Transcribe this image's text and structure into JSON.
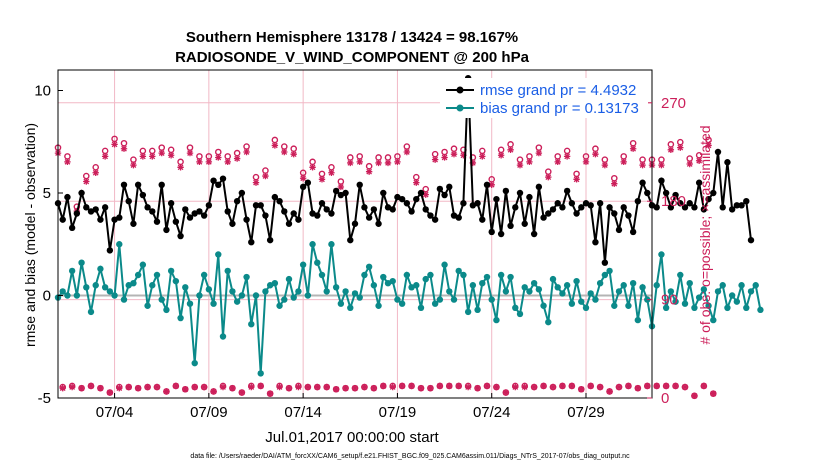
{
  "chart_data": {
    "type": "line",
    "title_line1": "Southern Hemisphere 13178 / 13424 = 98.167%",
    "title_line2": "RADIOSONDE_V_WIND_COMPONENT @ 200 hPa",
    "xlabel": "Jul.01,2017 00:00:00 start",
    "ylabel": "rmse and bias (model - observation)",
    "y2label": "# of obs: o=possible; ×=assimilated",
    "footer": "data file: /Users/raeder/DAI/ATM_forcXX/CAM6_setup/f.e21.FHIST_BGC.f09_025.CAM6assim.011/Diags_NTrS_2017-07/obs_diag_output.nc",
    "x_range": [
      1,
      32.5
    ],
    "ylim": [
      -5,
      11
    ],
    "y2lim": [
      0,
      300
    ],
    "yticks": [
      -5,
      0,
      5,
      10
    ],
    "y2ticks": [
      0,
      90,
      180,
      270
    ],
    "xticks": [
      {
        "x": 4,
        "label": "07/04"
      },
      {
        "x": 9,
        "label": "07/09"
      },
      {
        "x": 14,
        "label": "07/14"
      },
      {
        "x": 19,
        "label": "07/19"
      },
      {
        "x": 24,
        "label": "07/24"
      },
      {
        "x": 29,
        "label": "07/29"
      }
    ],
    "colors": {
      "rmse": "#000000",
      "bias": "#0b8a8a",
      "obs": "#cc1f5a",
      "zero": "#b4b4b4",
      "grid": "#f2b8c6"
    },
    "legend": {
      "location": "top-right",
      "entries": [
        "rmse grand pr = 4.4932",
        "bias grand pr = 0.13173"
      ]
    },
    "series": [
      {
        "name": "rmse",
        "values": [
          4.5,
          3.7,
          4.8,
          3.3,
          4.0,
          5.0,
          4.3,
          4.1,
          4.2,
          3.7,
          4.3,
          2.2,
          3.7,
          3.8,
          5.4,
          4.6,
          3.5,
          5.4,
          4.9,
          4.3,
          4.1,
          3.6,
          5.4,
          3.2,
          4.5,
          3.6,
          2.9,
          4.2,
          3.8,
          4.0,
          4.1,
          3.9,
          4.4,
          5.6,
          5.4,
          5.7,
          4.1,
          3.5,
          4.6,
          5.0,
          3.7,
          2.6,
          4.4,
          4.4,
          3.9,
          2.7,
          4.8,
          4.6,
          4.1,
          3.5,
          4.0,
          3.7,
          5.3,
          5.5,
          4.0,
          3.9,
          4.5,
          4.2,
          4.0,
          5.1,
          4.9,
          5.0,
          2.7,
          3.5,
          5.4,
          4.3,
          3.8,
          4.2,
          3.5,
          5.0,
          4.3,
          4.2,
          4.8,
          4.7,
          4.5,
          4.1,
          4.7,
          5.0,
          4.2,
          3.9,
          3.7,
          5.2,
          4.9,
          5.3,
          3.9,
          3.8,
          4.5,
          10.6,
          4.4,
          4.5,
          3.7,
          5.4,
          3.1,
          4.7,
          3.0,
          5.1,
          3.4,
          4.3,
          5.0,
          3.5,
          4.8,
          3.0,
          5.3,
          3.8,
          4.0,
          4.2,
          4.5,
          4.3,
          5.1,
          4.5,
          4.0,
          4.3,
          4.5,
          4.4,
          2.6,
          4.5,
          1.6,
          4.3,
          4.0,
          3.2,
          4.3,
          3.9,
          3.1,
          4.6,
          5.5,
          5.0,
          4.4,
          4.3,
          5.6,
          5.0,
          4.3,
          4.9,
          4.5,
          4.3,
          4.5,
          4.3,
          5.5,
          4.2,
          4.7,
          5.0,
          7.0,
          4.3,
          6.5,
          4.2,
          4.4,
          4.4,
          4.6,
          2.7
        ]
      },
      {
        "name": "bias",
        "values": [
          -0.1,
          0.2,
          0.0,
          1.2,
          0.0,
          1.6,
          0.4,
          -0.8,
          0.5,
          1.3,
          0.4,
          0.2,
          0.0,
          2.5,
          -0.2,
          0.5,
          0.6,
          1.0,
          1.5,
          -0.5,
          0.5,
          1.0,
          -0.2,
          -0.7,
          1.2,
          0.7,
          -1.1,
          0.4,
          -0.4,
          -3.3,
          0.0,
          1.0,
          0.3,
          -0.4,
          2.0,
          -2.0,
          1.2,
          0.2,
          -0.3,
          0.0,
          0.9,
          -1.4,
          0.0,
          -3.8,
          0.2,
          0.5,
          0.6,
          -0.5,
          -0.2,
          0.8,
          -0.1,
          0.2,
          1.5,
          0.0,
          2.5,
          1.6,
          1.0,
          0.2,
          2.5,
          0.4,
          -0.4,
          0.2,
          -0.6,
          0.1,
          -0.1,
          1.0,
          1.4,
          0.5,
          -0.5,
          0.9,
          0.6,
          0.7,
          -0.2,
          -0.4,
          1.0,
          0.4,
          0.5,
          -0.6,
          0.8,
          1.0,
          -0.4,
          -0.2,
          1.5,
          0.2,
          -0.2,
          1.2,
          1.0,
          -0.8,
          0.5,
          -0.7,
          0.6,
          0.9,
          -0.2,
          -1.2,
          1.0,
          0.2,
          0.9,
          -0.6,
          -0.9,
          0.4,
          0.2,
          0.6,
          0.3,
          -0.5,
          -1.3,
          0.8,
          0.4,
          0.1,
          0.5,
          -0.4,
          0.7,
          -0.3,
          -0.6,
          0.1,
          -0.2,
          0.6,
          1.0,
          1.2,
          -0.5,
          0.2,
          0.5,
          -0.5,
          0.6,
          -1.2,
          0.4,
          -0.2,
          -1.5,
          0.5,
          2.0,
          -0.6,
          0.2,
          -0.3,
          1.0,
          -0.4,
          0.6,
          -0.6,
          -0.1,
          0.3,
          -0.5,
          -1.2,
          0.2,
          0.5,
          -0.6,
          0.0,
          -0.3,
          0.5,
          -0.6,
          0.2,
          0.5,
          -0.7
        ]
      },
      {
        "name": "obs_possible",
        "values": [
          229,
          10,
          221,
          11,
          175,
          9,
          203,
          11,
          211,
          9,
          226,
          5,
          237,
          10,
          233,
          10,
          218,
          9,
          226,
          10,
          226,
          10,
          229,
          6,
          227,
          11,
          216,
          8,
          229,
          10,
          221,
          10,
          221,
          6,
          225,
          11,
          221,
          9,
          224,
          5,
          230,
          11,
          202,
          11,
          208,
          4,
          236,
          11,
          230,
          9,
          228,
          11,
          206,
          10,
          216,
          10,
          205,
          10,
          211,
          8,
          198,
          9,
          220,
          9,
          221,
          10,
          212,
          9,
          220,
          11,
          220,
          11,
          221,
          11,
          230,
          11,
          202,
          9,
          191,
          9,
          223,
          11,
          225,
          11,
          228,
          11,
          227,
          11,
          220,
          9,
          226,
          11,
          200,
          10,
          227,
          5,
          232,
          11,
          218,
          11,
          221,
          10,
          229,
          11,
          207,
          10,
          221,
          11,
          226,
          11,
          205,
          8,
          221,
          11,
          228,
          10,
          218,
          6,
          201,
          10,
          221,
          11,
          233,
          9,
          218,
          11,
          218,
          11,
          218,
          11,
          232,
          11,
          234,
          10,
          219,
          2,
          222,
          11,
          236,
          4
        ]
      },
      {
        "name": "obs_assimilated",
        "values": [
          224,
          9,
          216,
          10,
          171,
          9,
          198,
          11,
          206,
          9,
          221,
          5,
          232,
          9,
          228,
          10,
          213,
          9,
          221,
          10,
          221,
          10,
          224,
          6,
          222,
          11,
          211,
          8,
          224,
          10,
          216,
          10,
          216,
          6,
          220,
          10,
          216,
          9,
          219,
          5,
          225,
          10,
          197,
          11,
          203,
          4,
          231,
          10,
          225,
          9,
          223,
          10,
          201,
          10,
          211,
          10,
          200,
          10,
          206,
          8,
          193,
          9,
          215,
          9,
          216,
          10,
          207,
          9,
          215,
          11,
          215,
          10,
          216,
          11,
          225,
          11,
          197,
          9,
          186,
          9,
          218,
          11,
          220,
          11,
          223,
          11,
          222,
          10,
          215,
          9,
          221,
          11,
          195,
          10,
          222,
          5,
          227,
          10,
          213,
          10,
          216,
          10,
          224,
          11,
          202,
          10,
          216,
          11,
          221,
          11,
          200,
          8,
          216,
          11,
          223,
          10,
          213,
          6,
          196,
          10,
          216,
          11,
          228,
          9,
          213,
          11,
          213,
          11,
          213,
          11,
          227,
          11,
          229,
          10,
          214,
          2,
          217,
          11,
          231,
          4
        ]
      }
    ]
  }
}
